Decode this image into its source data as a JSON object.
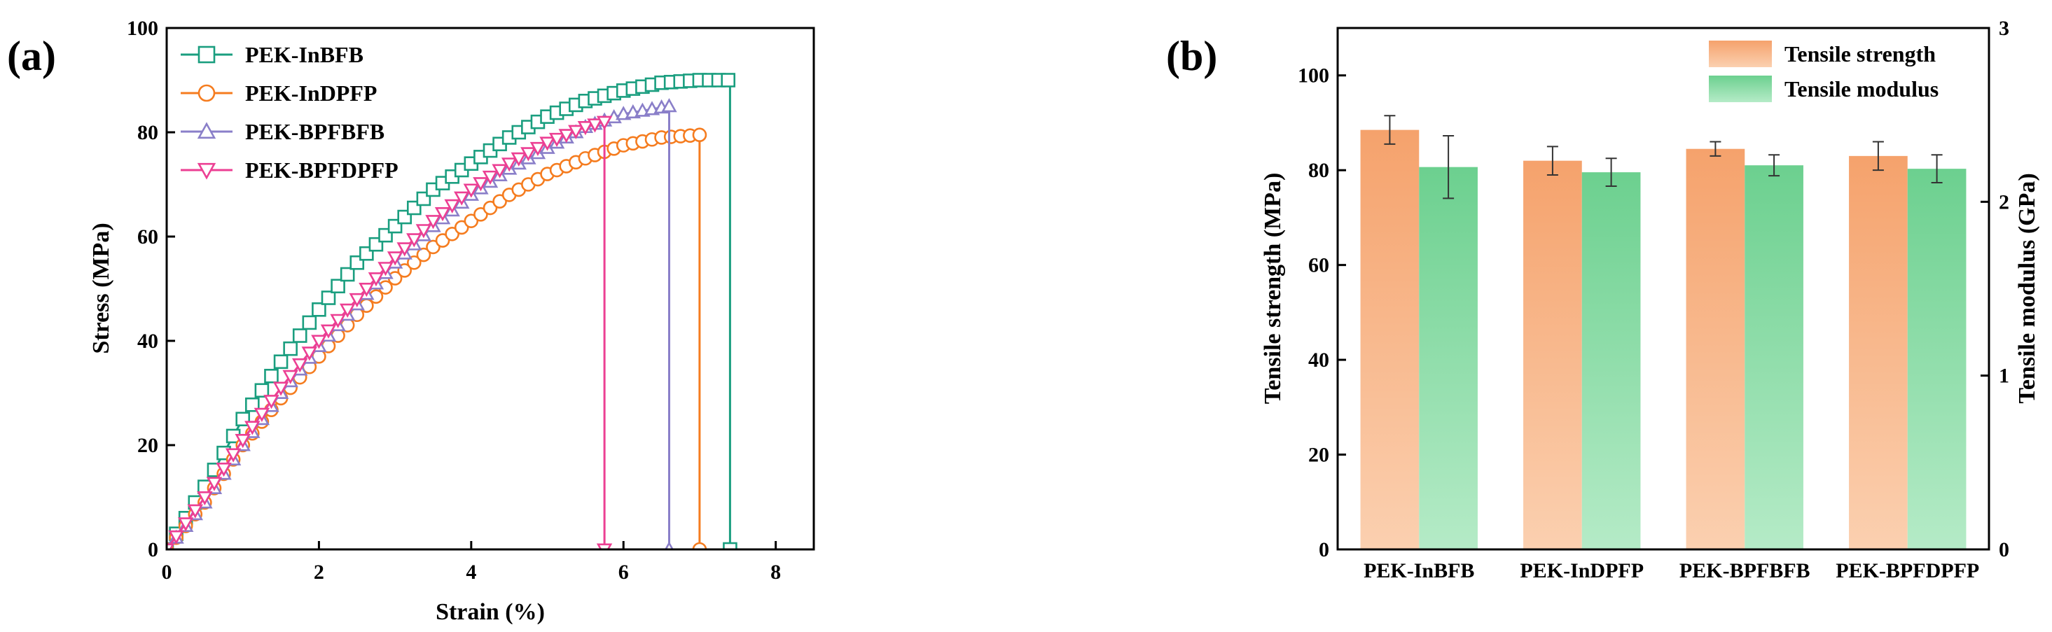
{
  "chart_data": [
    {
      "panel_label": "(a)",
      "type": "line",
      "xlabel": "Strain (%)",
      "ylabel": "Stress (MPa)",
      "xlim": [
        0,
        8.5
      ],
      "ylim": [
        0,
        100
      ],
      "xticks": [
        "0",
        "2",
        "4",
        "6",
        "8"
      ],
      "yticks": [
        "0",
        "20",
        "40",
        "60",
        "80",
        "100"
      ],
      "legend_position": "top-left",
      "series": [
        {
          "name": "PEK-InBFB",
          "color": "#1a9e7f",
          "marker": "square",
          "x": [
            0,
            0.5,
            1,
            1.5,
            2,
            2.5,
            3,
            3.5,
            4,
            4.5,
            5,
            5.5,
            6,
            6.5,
            7,
            7.4
          ],
          "y": [
            0,
            12,
            25,
            36,
            46,
            55,
            62,
            69,
            74,
            79,
            83,
            86,
            88,
            89.5,
            90,
            90
          ]
        },
        {
          "name": "PEK-InDPFP",
          "color": "#f57c1f",
          "marker": "circle",
          "x": [
            0,
            0.5,
            1,
            1.5,
            2,
            2.5,
            3,
            3.5,
            4,
            4.5,
            5,
            5.5,
            6,
            6.5,
            7.0
          ],
          "y": [
            0,
            9,
            20,
            29,
            37,
            45,
            52,
            58,
            63,
            68,
            72,
            75,
            77.5,
            79,
            79.5
          ]
        },
        {
          "name": "PEK-BPFBFB",
          "color": "#8a7fc9",
          "marker": "triangle-up",
          "x": [
            0,
            0.5,
            1,
            1.5,
            2,
            2.5,
            3,
            3.5,
            4,
            4.5,
            5,
            5.5,
            6,
            6.6
          ],
          "y": [
            0,
            9,
            20,
            30,
            39,
            47,
            55,
            62,
            68,
            73,
            77,
            81,
            83.5,
            85
          ]
        },
        {
          "name": "PEK-BPFDPFP",
          "color": "#ec3f93",
          "marker": "triangle-down",
          "x": [
            0,
            0.5,
            1,
            1.5,
            2,
            2.5,
            3,
            3.5,
            4,
            4.5,
            5,
            5.5,
            5.75
          ],
          "y": [
            0,
            10,
            21,
            31,
            40,
            48,
            56,
            63,
            69,
            74,
            78,
            81,
            82
          ]
        }
      ]
    },
    {
      "panel_label": "(b)",
      "type": "bar",
      "categories": [
        "PEK-InBFB",
        "PEK-InDPFP",
        "PEK-BPFBFB",
        "PEK-BPFDPFP"
      ],
      "ylabel": "Tensile strength (MPa)",
      "y2label": "Tensile modulus (GPa)",
      "ylim": [
        0,
        110
      ],
      "y2lim": [
        0,
        3
      ],
      "yticks": [
        "0",
        "20",
        "40",
        "60",
        "80",
        "100"
      ],
      "y2ticks": [
        "0",
        "1",
        "2",
        "3"
      ],
      "legend_position": "top-right",
      "series": [
        {
          "name": "Tensile strength",
          "axis": "left",
          "color": "#f5a26c",
          "values": [
            88.5,
            82.0,
            84.5,
            83.0
          ],
          "errors": [
            3.0,
            3.0,
            1.5,
            3.0
          ]
        },
        {
          "name": "Tensile modulus",
          "axis": "right",
          "color": "#6cd08f",
          "values": [
            2.2,
            2.17,
            2.21,
            2.19
          ],
          "errors": [
            0.18,
            0.08,
            0.06,
            0.08
          ]
        }
      ]
    }
  ]
}
